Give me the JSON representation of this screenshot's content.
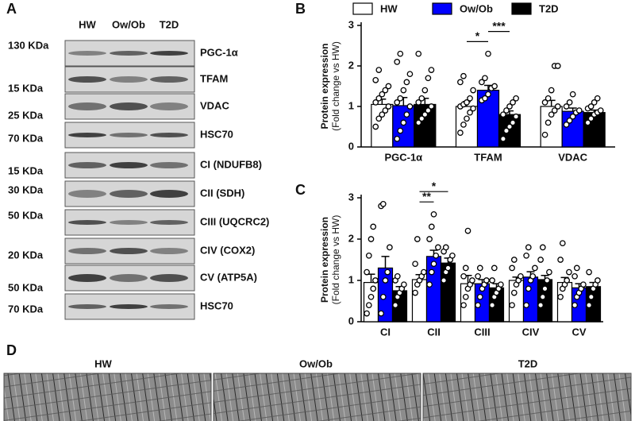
{
  "panel_labels": [
    "A",
    "B",
    "C",
    "D"
  ],
  "blots": {
    "columns": [
      "HW",
      "Ow/Ob",
      "T2D"
    ],
    "rows": [
      {
        "size": "130 KDa",
        "protein": "PGC-1α"
      },
      {
        "size": "15 KDa",
        "protein": "TFAM"
      },
      {
        "size": "25 KDa",
        "protein": "VDAC"
      },
      {
        "size": "70 KDa",
        "protein": "HSC70"
      },
      {
        "size": "15 KDa",
        "protein": "CI (NDUFB8)"
      },
      {
        "size": "30 KDa",
        "protein": "CII (SDH)"
      },
      {
        "size": "50 KDa",
        "protein": "CIII (UQCRC2)"
      },
      {
        "size": "20 KDa",
        "protein": "CIV (COX2)"
      },
      {
        "size": "50 KDa",
        "protein": "CV (ATP5A)"
      },
      {
        "size": "70 KDa",
        "protein": "HSC70"
      }
    ]
  },
  "micrographs": {
    "labels": [
      "HW",
      "Ow/Ob",
      "T2D"
    ]
  },
  "chart_data": [
    {
      "type": "bar",
      "ylabel": [
        "Protein expression",
        "(Fold change vs HW)"
      ],
      "categories": [
        "PGC-1α",
        "TFAM",
        "VDAC"
      ],
      "series": [
        {
          "name": "HW",
          "color": "#ffffff",
          "values": [
            1.05,
            1.0,
            1.0
          ],
          "errors": [
            0.13,
            0.12,
            0.15
          ],
          "points": [
            [
              0.5,
              0.7,
              0.8,
              0.9,
              1.0,
              1.1,
              1.2,
              1.3,
              1.4,
              1.5,
              1.65,
              1.9
            ],
            [
              0.35,
              0.55,
              0.7,
              0.85,
              0.95,
              1.0,
              1.05,
              1.1,
              1.2,
              1.4,
              1.6,
              1.75
            ],
            [
              0.3,
              0.6,
              0.8,
              0.9,
              1.0,
              1.1,
              1.2,
              1.4,
              2.0,
              2.0
            ]
          ]
        },
        {
          "name": "Ow/Ob",
          "color": "#0000ff",
          "values": [
            1.02,
            1.4,
            0.88
          ],
          "errors": [
            0.2,
            0.12,
            0.08
          ],
          "points": [
            [
              0.2,
              0.4,
              0.6,
              0.8,
              1.0,
              1.1,
              1.2,
              1.4,
              1.6,
              1.8,
              2.1,
              2.3
            ],
            [
              1.15,
              1.2,
              1.3,
              1.45,
              1.5,
              1.6,
              1.7,
              2.3
            ],
            [
              0.55,
              0.65,
              0.75,
              0.85,
              0.9,
              1.0,
              1.1,
              1.3
            ]
          ]
        },
        {
          "name": "T2D",
          "color": "#000000",
          "values": [
            1.05,
            0.8,
            0.85
          ],
          "errors": [
            0.15,
            0.09,
            0.06
          ],
          "points": [
            [
              0.6,
              0.7,
              0.8,
              0.9,
              1.0,
              1.1,
              1.2,
              1.4,
              1.7,
              1.9,
              2.3
            ],
            [
              0.2,
              0.4,
              0.5,
              0.6,
              0.75,
              0.8,
              0.9,
              1.0,
              1.1,
              1.2
            ],
            [
              0.6,
              0.7,
              0.8,
              0.85,
              0.9,
              0.95,
              1.0,
              1.1,
              1.2
            ]
          ]
        }
      ],
      "ylim": [
        0,
        3
      ],
      "yticks": [
        0,
        1,
        2,
        3
      ],
      "legend": "top",
      "annotations": [
        {
          "text": "*",
          "category": "TFAM",
          "between": [
            "HW",
            "Ow/Ob"
          ]
        },
        {
          "text": "***",
          "category": "TFAM",
          "between": [
            "Ow/Ob",
            "T2D"
          ]
        }
      ]
    },
    {
      "type": "bar",
      "ylabel": [
        "Protein expression",
        "(Fold change vs HW)"
      ],
      "categories": [
        "CI",
        "CII",
        "CIII",
        "CIV",
        "CV"
      ],
      "series": [
        {
          "name": "HW",
          "color": "#ffffff",
          "values": [
            0.95,
            1.02,
            0.92,
            1.0,
            0.95
          ],
          "errors": [
            0.2,
            0.12,
            0.2,
            0.08,
            0.12
          ],
          "points": [
            [
              0.2,
              0.4,
              0.6,
              0.8,
              1.0,
              1.2,
              1.6,
              2.0,
              2.3
            ],
            [
              0.7,
              0.9,
              1.0,
              1.1,
              1.2,
              1.4,
              2.0
            ],
            [
              0.4,
              0.6,
              0.8,
              0.9,
              1.0,
              1.1,
              1.3,
              2.2
            ],
            [
              0.4,
              0.7,
              0.9,
              1.0,
              1.1,
              1.3,
              1.5
            ],
            [
              0.6,
              0.8,
              0.9,
              1.0,
              1.2,
              1.5,
              1.9
            ]
          ]
        },
        {
          "name": "Ow/Ob",
          "color": "#0000ff",
          "values": [
            1.3,
            1.58,
            0.92,
            1.08,
            0.82
          ],
          "errors": [
            0.28,
            0.15,
            0.1,
            0.13,
            0.1
          ],
          "points": [
            [
              0.2,
              0.6,
              1.0,
              1.2,
              1.8,
              2.8,
              2.85
            ],
            [
              0.9,
              1.2,
              1.4,
              1.6,
              1.8,
              2.0,
              2.3,
              2.6
            ],
            [
              0.4,
              0.6,
              0.8,
              0.9,
              1.0,
              1.1,
              1.3
            ],
            [
              0.4,
              0.8,
              1.0,
              1.1,
              1.3,
              1.6,
              1.8
            ],
            [
              0.4,
              0.6,
              0.7,
              0.8,
              0.9,
              1.1,
              1.3
            ]
          ]
        },
        {
          "name": "T2D",
          "color": "#000000",
          "values": [
            0.75,
            1.42,
            0.82,
            1.02,
            0.85
          ],
          "errors": [
            0.1,
            0.12,
            0.1,
            0.1,
            0.1
          ],
          "points": [
            [
              0.4,
              0.6,
              0.7,
              0.8,
              0.9,
              1.0,
              1.1
            ],
            [
              1.0,
              1.2,
              1.3,
              1.5,
              1.6,
              1.7,
              1.8
            ],
            [
              0.4,
              0.6,
              0.7,
              0.8,
              0.9,
              1.0,
              1.3
            ],
            [
              0.4,
              0.6,
              0.8,
              1.0,
              1.2,
              1.5,
              1.8
            ],
            [
              0.4,
              0.6,
              0.8,
              0.9,
              1.0,
              1.2
            ]
          ]
        }
      ],
      "ylim": [
        0,
        3
      ],
      "yticks": [
        0,
        1,
        2,
        3
      ],
      "legend": "none",
      "annotations": [
        {
          "text": "**",
          "category": "CII",
          "between": [
            "HW",
            "Ow/Ob"
          ]
        },
        {
          "text": "*",
          "category": "CII",
          "between": [
            "HW",
            "T2D"
          ]
        }
      ]
    }
  ]
}
